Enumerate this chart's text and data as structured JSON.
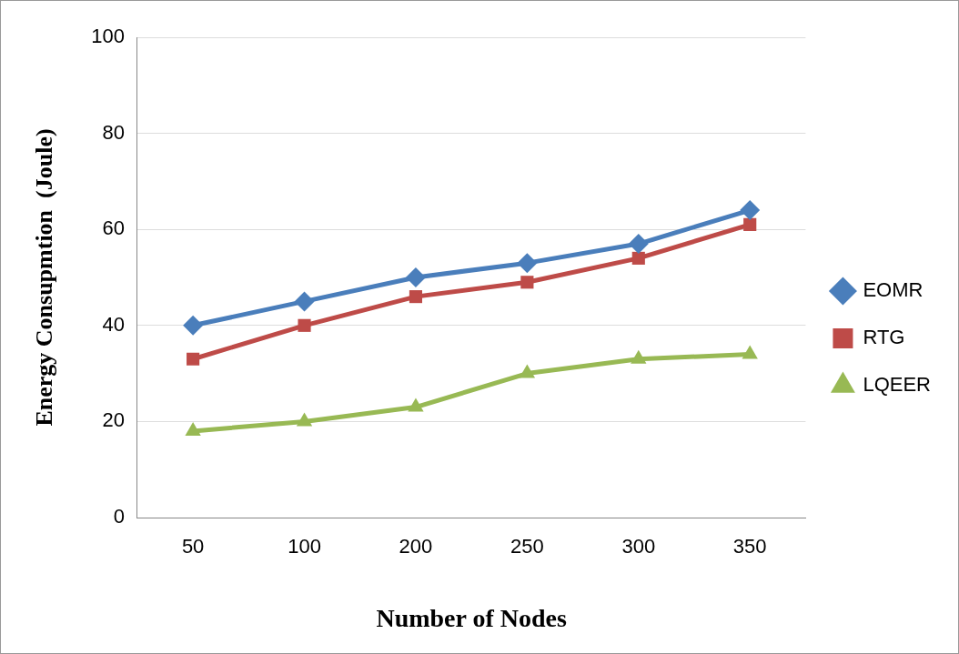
{
  "chart_data": {
    "type": "line",
    "xlabel": "Number of Nodes",
    "ylabel": "Energy Consupmtion  (Joule)",
    "categories": [
      "50",
      "100",
      "200",
      "250",
      "300",
      "350"
    ],
    "series": [
      {
        "name": "EOMR",
        "color": "#4a7ebb",
        "marker": "diamond",
        "values": [
          40,
          45,
          50,
          53,
          57,
          64
        ]
      },
      {
        "name": "RTG",
        "color": "#be4b48",
        "marker": "square",
        "values": [
          33,
          40,
          46,
          49,
          54,
          61
        ]
      },
      {
        "name": "LQEER",
        "color": "#98b954",
        "marker": "triangle",
        "values": [
          18,
          20,
          23,
          30,
          33,
          34
        ]
      }
    ],
    "ylim": [
      0,
      100
    ],
    "yticks": [
      0,
      20,
      40,
      60,
      80,
      100
    ],
    "grid": "y",
    "legend": "right",
    "line_style": "solid"
  }
}
